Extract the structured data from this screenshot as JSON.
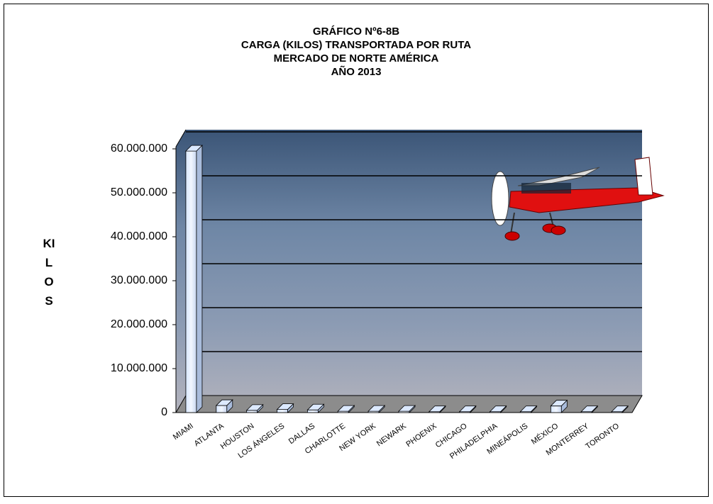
{
  "chart_data": {
    "type": "bar3d",
    "title": [
      "GRÁFICO Nº6-8B",
      "CARGA (KILOS) TRANSPORTADA POR RUTA",
      "MERCADO DE NORTE AMÉRICA",
      "AÑO 2013"
    ],
    "y_label": "KILOS",
    "categories": [
      "MIAMI",
      "ATLANTA",
      "HOUSTON",
      "LOS ÁNGELES",
      "DALLAS",
      "CHARLOTTE",
      "NEW YORK",
      "NEWARK",
      "PHOENIX",
      "CHICAGO",
      "PHILADELPHIA",
      "MINEÁPOLIS",
      "MÉXICO",
      "MONTERREY",
      "TORONTO"
    ],
    "values": [
      59500000,
      1600000,
      500000,
      700000,
      600000,
      300000,
      300000,
      300000,
      200000,
      200000,
      200000,
      200000,
      1500000,
      200000,
      200000
    ],
    "color": "#dce9ff",
    "ylim": [
      0,
      60000000
    ],
    "yticks": [
      {
        "value": 0,
        "label": "0"
      },
      {
        "value": 10000000,
        "label": "10.000.000"
      },
      {
        "value": 20000000,
        "label": "20.000.000"
      },
      {
        "value": 30000000,
        "label": "30.000.000"
      },
      {
        "value": 40000000,
        "label": "40.000.000"
      },
      {
        "value": 50000000,
        "label": "50.000.000"
      },
      {
        "value": 60000000,
        "label": "60.000.000"
      }
    ],
    "grid": true
  }
}
